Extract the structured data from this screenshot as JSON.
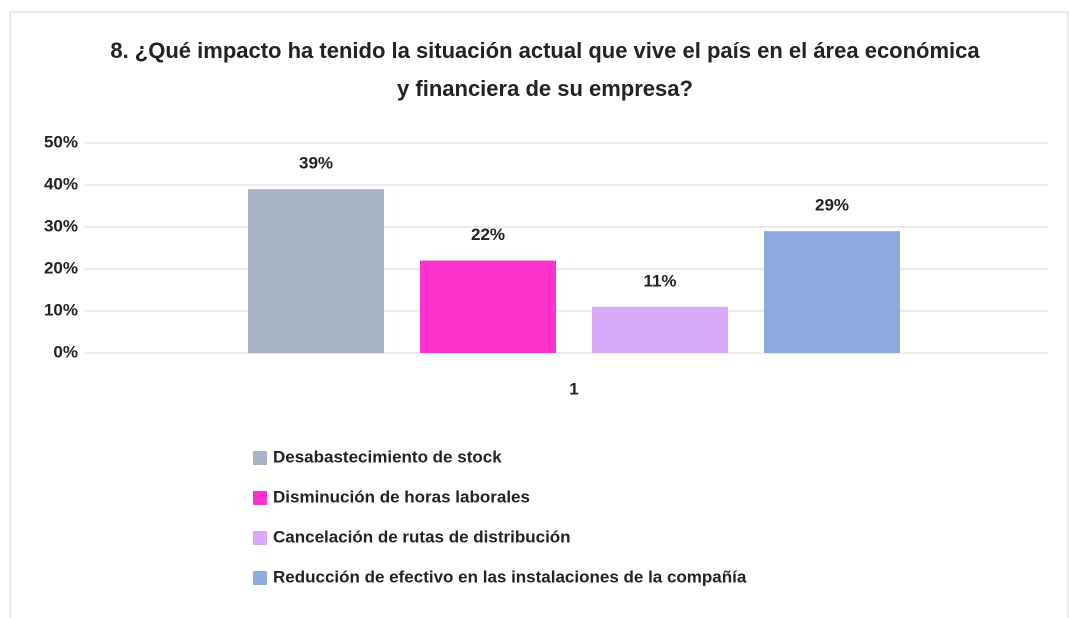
{
  "chart_data": {
    "type": "bar",
    "title": "8. ¿Qué impacto ha tenido la situación actual que vive el país en el área económica y financiera de su empresa?",
    "categories": [
      "1"
    ],
    "series": [
      {
        "name": "Desabastecimiento de stock",
        "color": "#a9b4c6",
        "values": [
          39
        ],
        "value_labels": [
          "39%"
        ]
      },
      {
        "name": "Disminución de horas laborales",
        "color": "#ff33cc",
        "values": [
          22
        ],
        "value_labels": [
          "22%"
        ]
      },
      {
        "name": "Cancelación de rutas de distribución",
        "color": "#d9aaf7",
        "values": [
          11
        ],
        "value_labels": [
          "11%"
        ]
      },
      {
        "name": "Reducción de efectivo en las instalaciones de la compañía",
        "color": "#8eaade",
        "values": [
          29
        ],
        "value_labels": [
          "29%"
        ]
      }
    ],
    "ylim": [
      0,
      50
    ],
    "yticks": [
      {
        "value": 0,
        "label": "0%"
      },
      {
        "value": 10,
        "label": "10%"
      },
      {
        "value": 20,
        "label": "20%"
      },
      {
        "value": 30,
        "label": "30%"
      },
      {
        "value": 40,
        "label": "40%"
      },
      {
        "value": 50,
        "label": "50%"
      }
    ],
    "grid": true,
    "legend": "bottom"
  }
}
